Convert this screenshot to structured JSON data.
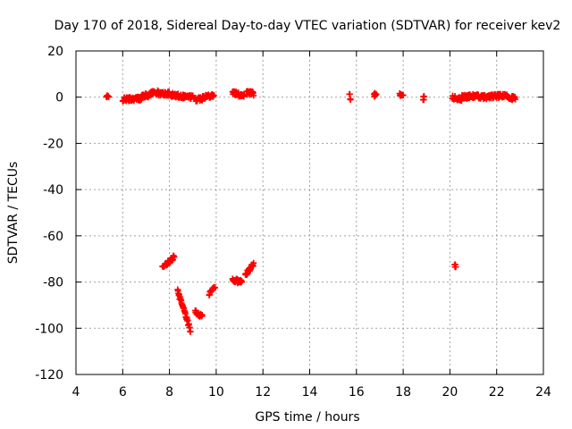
{
  "chart_data": {
    "type": "scatter",
    "title": "Day 170 of 2018, Sidereal Day-to-day VTEC variation (SDTVAR) for receiver kev2",
    "xlabel": "GPS time / hours",
    "ylabel": "SDTVAR / TECUs",
    "xlim": [
      4,
      24
    ],
    "ylim": [
      -120,
      20
    ],
    "xticks": [
      "4",
      "6",
      "8",
      "10",
      "12",
      "14",
      "16",
      "18",
      "20",
      "22",
      "24"
    ],
    "yticks": [
      "20",
      "0",
      "-20",
      "-40",
      "-60",
      "-80",
      "-100",
      "-120"
    ],
    "grid": true,
    "marker": "plus",
    "color": "#ff0000",
    "segments": [
      {
        "x0": 5.3,
        "x1": 5.4,
        "y0": 0,
        "y1": 0
      },
      {
        "x0": 6.0,
        "x1": 6.8,
        "y0": -1,
        "y1": -0.5
      },
      {
        "x0": 6.8,
        "x1": 7.2,
        "y0": 0.5,
        "y1": 1
      },
      {
        "x0": 7.2,
        "x1": 7.5,
        "y0": 2,
        "y1": 2
      },
      {
        "x0": 7.5,
        "x1": 8.0,
        "y0": 1.5,
        "y1": 1.5
      },
      {
        "x0": 8.0,
        "x1": 8.5,
        "y0": 1,
        "y1": 0.5
      },
      {
        "x0": 8.5,
        "x1": 9.0,
        "y0": 0.5,
        "y1": 0
      },
      {
        "x0": 9.1,
        "x1": 9.4,
        "y0": -1,
        "y1": -0.5
      },
      {
        "x0": 9.4,
        "x1": 9.9,
        "y0": 0,
        "y1": 1
      },
      {
        "x0": 10.7,
        "x1": 11.0,
        "y0": 2,
        "y1": 1
      },
      {
        "x0": 11.0,
        "x1": 11.2,
        "y0": 1,
        "y1": 1
      },
      {
        "x0": 11.3,
        "x1": 11.6,
        "y0": 2,
        "y1": 1.5
      },
      {
        "x0": 15.7,
        "x1": 15.75,
        "y0": 1,
        "y1": -0.5
      },
      {
        "x0": 16.75,
        "x1": 16.85,
        "y0": 1,
        "y1": 1
      },
      {
        "x0": 17.85,
        "x1": 18.0,
        "y0": 1.5,
        "y1": 0
      },
      {
        "x0": 18.85,
        "x1": 18.9,
        "y0": -0.5,
        "y1": -0.5
      },
      {
        "x0": 20.1,
        "x1": 20.5,
        "y0": 0,
        "y1": -1
      },
      {
        "x0": 20.5,
        "x1": 21.0,
        "y0": 0,
        "y1": 0.5
      },
      {
        "x0": 21.0,
        "x1": 21.5,
        "y0": 0.5,
        "y1": 0
      },
      {
        "x0": 21.5,
        "x1": 22.0,
        "y0": 0,
        "y1": 0.5
      },
      {
        "x0": 22.0,
        "x1": 22.5,
        "y0": 0.5,
        "y1": 0.5
      },
      {
        "x0": 22.5,
        "x1": 22.8,
        "y0": 0,
        "y1": -0.5
      },
      {
        "x0": 7.7,
        "x1": 8.2,
        "y0": -74,
        "y1": -69
      },
      {
        "x0": 8.35,
        "x1": 8.9,
        "y0": -84,
        "y1": -101
      },
      {
        "x0": 9.1,
        "x1": 9.4,
        "y0": -93,
        "y1": -95
      },
      {
        "x0": 9.7,
        "x1": 9.95,
        "y0": -85,
        "y1": -82
      },
      {
        "x0": 10.7,
        "x1": 11.1,
        "y0": -79,
        "y1": -80
      },
      {
        "x0": 11.25,
        "x1": 11.6,
        "y0": -77,
        "y1": -72
      },
      {
        "x0": 20.2,
        "x1": 20.25,
        "y0": -73,
        "y1": -73
      }
    ]
  }
}
